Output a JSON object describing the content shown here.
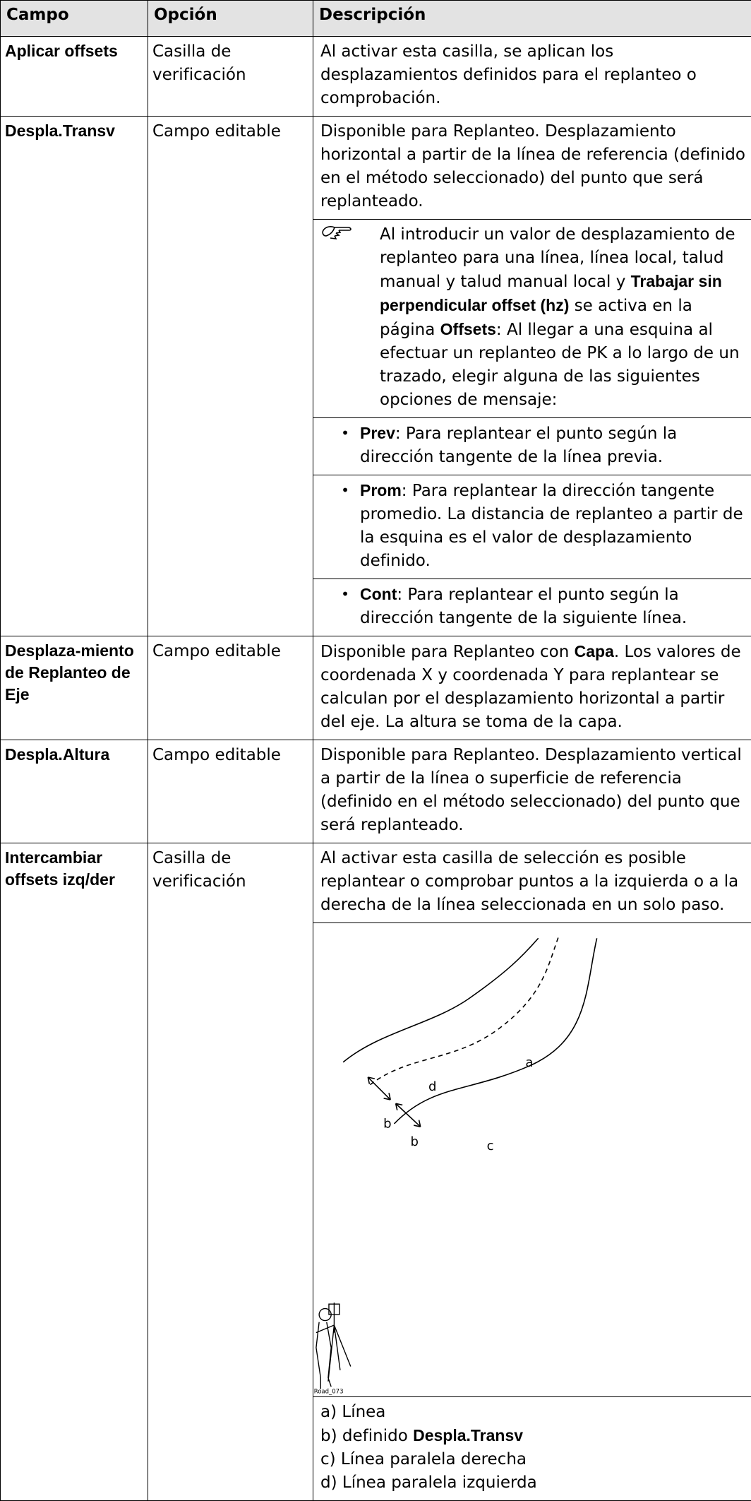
{
  "table": {
    "header": [
      "Campo",
      "Opción",
      "Descripción"
    ],
    "rows": [
      {
        "campo": "Aplicar offsets",
        "opcion": "Casilla de verificación",
        "descripcion": [
          {
            "kind": "p",
            "runs": [
              {
                "text": "Al activar esta casilla, se aplican los desplazamientos definidos para el replanteo o comprobación."
              }
            ]
          }
        ]
      },
      {
        "campo": "Despla.Transv",
        "opcion": "Campo editable",
        "descripcion": [
          {
            "kind": "p",
            "runs": [
              {
                "text": "Disponible para Replanteo. Desplazamiento horizontal a partir de la línea de referencia (definido en el método seleccionado) del punto que será replanteado."
              }
            ]
          },
          {
            "kind": "note",
            "runs": [
              {
                "text": "Al introducir un valor de desplazamiento de replanteo para una línea, línea local, talud manual y talud manual local y "
              },
              {
                "text": "Trabajar sin perpendicular offset (hz)",
                "bold": true
              },
              {
                "text": " se activa en la página "
              },
              {
                "text": "Offsets",
                "bold": true
              },
              {
                "text": ": Al llegar a una esquina al efectuar un replanteo de PK a lo largo de un trazado, elegir alguna de las siguientes opciones de mensaje:"
              }
            ]
          },
          {
            "kind": "bullet",
            "runs": [
              {
                "text": "Prev",
                "bold": true
              },
              {
                "text": ": Para replantear el punto según la dirección tangente de la línea previa."
              }
            ]
          },
          {
            "kind": "bullet",
            "runs": [
              {
                "text": "Prom",
                "bold": true
              },
              {
                "text": ": Para replantear la dirección tangente promedio. La distancia de replanteo a partir de la esquina es el valor de desplazamiento definido."
              }
            ]
          },
          {
            "kind": "bullet",
            "runs": [
              {
                "text": "Cont",
                "bold": true
              },
              {
                "text": ": Para replantear el punto según la dirección tangente de la siguiente línea."
              }
            ]
          }
        ]
      },
      {
        "campo": "Desplaza-miento de Replanteo de Eje",
        "opcion": "Campo editable",
        "descripcion": [
          {
            "kind": "p",
            "runs": [
              {
                "text": "Disponible para Replanteo con "
              },
              {
                "text": "Capa",
                "bold": true
              },
              {
                "text": ". Los valores de coordenada X y coordenada Y para replantear se calculan por el desplazamiento horizontal a partir del eje. La altura se toma de la capa."
              }
            ]
          }
        ]
      },
      {
        "campo": "Despla.Altura",
        "opcion": "Campo editable",
        "descripcion": [
          {
            "kind": "p",
            "runs": [
              {
                "text": "Disponible para Replanteo. Desplazamiento vertical a partir de la línea o superficie de referencia (definido en el método seleccionado) del punto que será replanteado."
              }
            ]
          }
        ]
      },
      {
        "campo": "Intercambiar offsets izq/der",
        "opcion": "Casilla de verificación",
        "descripcion": [
          {
            "kind": "p",
            "runs": [
              {
                "text": "Al activar esta casilla de selección es posible replantear o comprobar puntos a la izquierda o a la derecha de la línea seleccionada en un solo paso."
              }
            ]
          },
          {
            "kind": "figure",
            "labels": [
              "a",
              "b",
              "b",
              "c",
              "d"
            ],
            "code": "Road_073"
          },
          {
            "kind": "legend",
            "items": [
              {
                "runs": [
                  {
                    "text": "a) Línea"
                  }
                ]
              },
              {
                "runs": [
                  {
                    "text": "b) definido "
                  },
                  {
                    "text": "Despla.Transv",
                    "bold": true
                  }
                ]
              },
              {
                "runs": [
                  {
                    "text": "c) Línea paralela derecha"
                  }
                ]
              },
              {
                "runs": [
                  {
                    "text": "d) Línea paralela izquierda"
                  }
                ]
              }
            ]
          }
        ]
      }
    ]
  }
}
